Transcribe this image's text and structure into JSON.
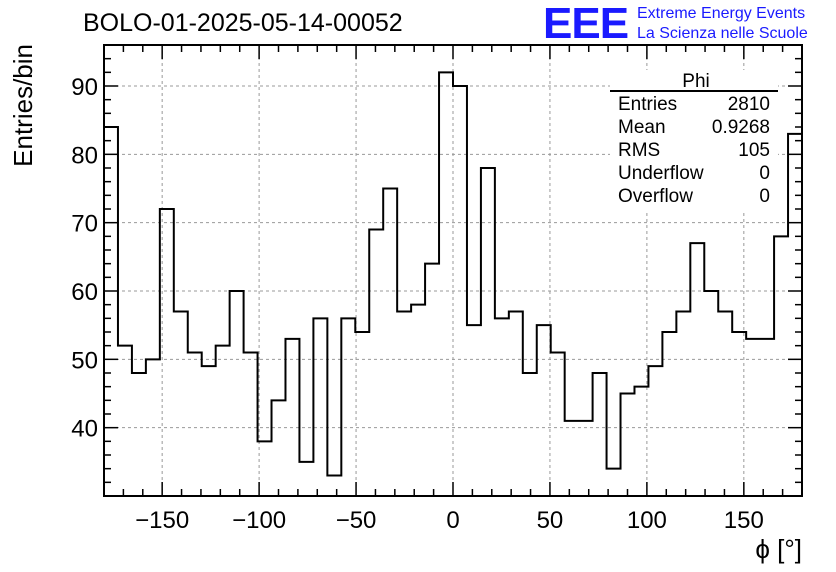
{
  "header": {
    "title": "BOLO-01-2025-05-14-00052",
    "logo_text": "EEE",
    "logo_line1": "Extreme Energy Events",
    "logo_line2": "La Scienza nelle Scuole",
    "logo_color": "#1a1aff"
  },
  "stats_box": {
    "name": "Phi",
    "rows": [
      {
        "label": "Entries",
        "value": "2810"
      },
      {
        "label": "Mean",
        "value": "0.9268"
      },
      {
        "label": "RMS",
        "value": "105"
      },
      {
        "label": "Underflow",
        "value": "0"
      },
      {
        "label": "Overflow",
        "value": "0"
      }
    ]
  },
  "chart_data": {
    "type": "histogram",
    "xlabel": "ϕ [°]",
    "ylabel": "Entries/bin",
    "xlim": [
      -180,
      180
    ],
    "ylim": [
      30,
      96
    ],
    "bin_width": 7.2,
    "x_ticks": [
      -150,
      -100,
      -50,
      0,
      50,
      100,
      150
    ],
    "x_tick_labels": [
      "−150",
      "−100",
      "−50",
      "0",
      "50",
      "100",
      "150"
    ],
    "y_ticks": [
      40,
      50,
      60,
      70,
      80,
      90
    ],
    "y_tick_labels": [
      "40",
      "50",
      "60",
      "70",
      "80",
      "90"
    ],
    "grid": true,
    "values": [
      84,
      52,
      48,
      50,
      72,
      57,
      51,
      49,
      52,
      60,
      51,
      38,
      44,
      53,
      35,
      56,
      33,
      56,
      54,
      69,
      75,
      57,
      58,
      64,
      92,
      90,
      55,
      78,
      56,
      57,
      48,
      55,
      51,
      41,
      41,
      48,
      34,
      45,
      46,
      49,
      54,
      57,
      67,
      60,
      57,
      54,
      53,
      53,
      68,
      83
    ]
  }
}
